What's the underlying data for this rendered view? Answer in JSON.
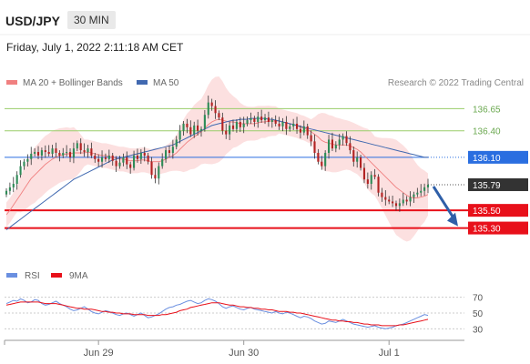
{
  "header": {
    "symbol": "USD/JPY",
    "timeframe": "30 MIN",
    "datetime": "Friday, July 1, 2022 2:11:18 AM CET",
    "copyright": "Research © 2022 Trading Central"
  },
  "colors": {
    "bull": "#2e8b57",
    "bear": "#b22222",
    "ma20": "#f08080",
    "bollinger_fill": "#fbd5d5",
    "ma50": "#4169b0",
    "resistance": "#9acd6a",
    "support": "#e8101a",
    "pivot": "#2a6ee0",
    "last": "#333333",
    "rsi": "#6a8fe0",
    "rsi_ma": "#e8101a"
  },
  "chart_data": [
    {
      "type": "candlestick",
      "title": "",
      "legend": [
        {
          "name": "MA 20 + Bollinger Bands",
          "color": "#f08080"
        },
        {
          "name": "MA 50",
          "color": "#4169b0"
        }
      ],
      "x_ticks": [
        "Jun 29",
        "Jun 30",
        "Jul 1"
      ],
      "ylim": [
        135.1,
        136.85
      ],
      "close": [
        135.72,
        135.76,
        135.8,
        135.9,
        136.0,
        136.05,
        136.08,
        136.14,
        136.16,
        136.12,
        136.18,
        136.16,
        136.14,
        136.2,
        136.15,
        136.12,
        136.15,
        136.16,
        136.1,
        136.2,
        136.26,
        136.18,
        136.16,
        136.2,
        136.12,
        136.08,
        136.05,
        136.1,
        136.08,
        136.12,
        136.06,
        136.0,
        136.04,
        136.1,
        136.02,
        135.98,
        136.12,
        136.08,
        136.15,
        136.12,
        136.05,
        135.9,
        135.86,
        136.0,
        136.08,
        136.18,
        136.15,
        136.22,
        136.3,
        136.4,
        136.48,
        136.44,
        136.36,
        136.46,
        136.4,
        136.42,
        136.58,
        136.72,
        136.68,
        136.6,
        136.55,
        136.4,
        136.36,
        136.46,
        136.42,
        136.5,
        136.44,
        136.48,
        136.52,
        136.54,
        136.5,
        136.56,
        136.52,
        136.55,
        136.5,
        136.52,
        136.48,
        136.45,
        136.5,
        136.42,
        136.45,
        136.48,
        136.42,
        136.38,
        136.45,
        136.35,
        136.28,
        136.15,
        136.05,
        136.0,
        136.15,
        136.3,
        136.2,
        136.24,
        136.3,
        136.34,
        136.26,
        136.18,
        136.05,
        136.1,
        135.98,
        135.85,
        135.8,
        135.9,
        135.88,
        135.7,
        135.65,
        135.62,
        135.6,
        135.58,
        135.55,
        135.58,
        135.62,
        135.6,
        135.65,
        135.68,
        135.7,
        135.72,
        135.76,
        135.79
      ],
      "series": [
        {
          "name": "MA 20 + Bollinger Bands",
          "values": [
            135.45,
            135.5,
            135.56,
            135.62,
            135.68,
            135.74,
            135.8,
            135.86,
            135.9,
            135.94,
            135.98,
            136.02,
            136.05,
            136.08,
            136.1,
            136.12,
            136.13,
            136.14,
            136.14,
            136.15,
            136.15,
            136.15,
            136.15,
            136.16,
            136.15,
            136.14,
            136.13,
            136.12,
            136.12,
            136.11,
            136.1,
            136.09,
            136.08,
            136.08,
            136.07,
            136.06,
            136.06,
            136.06,
            136.07,
            136.07,
            136.06,
            136.05,
            136.05,
            136.05,
            136.06,
            136.08,
            136.1,
            136.12,
            136.15,
            136.19,
            136.23,
            136.27,
            136.3,
            136.33,
            136.36,
            136.39,
            136.43,
            136.47,
            136.5,
            136.52,
            136.53,
            136.52,
            136.51,
            136.5,
            136.5,
            136.49,
            136.48,
            136.48,
            136.48,
            136.48,
            136.48,
            136.49,
            136.5,
            136.5,
            136.51,
            136.51,
            136.51,
            136.51,
            136.5,
            136.49,
            136.48,
            136.47,
            136.46,
            136.44,
            136.43,
            136.41,
            136.39,
            136.36,
            136.33,
            136.29,
            136.27,
            136.26,
            136.25,
            136.24,
            136.24,
            136.24,
            136.24,
            136.23,
            136.21,
            136.19,
            136.16,
            136.12,
            136.08,
            136.04,
            136.0,
            135.96,
            135.92,
            135.88,
            135.84,
            135.8,
            135.76,
            135.73,
            135.7,
            135.67,
            135.65,
            135.64,
            135.64,
            135.65,
            135.66,
            135.68
          ]
        },
        {
          "name": "MA 50",
          "values": [
            135.28,
            135.31,
            135.34,
            135.37,
            135.4,
            135.43,
            135.46,
            135.49,
            135.52,
            135.55,
            135.58,
            135.61,
            135.64,
            135.67,
            135.7,
            135.73,
            135.76,
            135.79,
            135.82,
            135.85,
            135.87,
            135.89,
            135.91,
            135.93,
            135.95,
            135.97,
            135.99,
            136.01,
            136.03,
            136.05,
            136.07,
            136.08,
            136.09,
            136.1,
            136.11,
            136.12,
            136.13,
            136.14,
            136.15,
            136.16,
            136.17,
            136.18,
            136.19,
            136.2,
            136.21,
            136.22,
            136.23,
            136.24,
            136.26,
            136.28,
            136.3,
            136.32,
            136.34,
            136.36,
            136.38,
            136.4,
            136.42,
            136.44,
            136.46,
            136.47,
            136.48,
            136.49,
            136.5,
            136.51,
            136.52,
            136.52,
            136.53,
            136.53,
            136.53,
            136.54,
            136.54,
            136.54,
            136.54,
            136.54,
            136.53,
            136.53,
            136.52,
            136.51,
            136.5,
            136.49,
            136.48,
            136.47,
            136.46,
            136.45,
            136.44,
            136.43,
            136.42,
            136.41,
            136.4,
            136.39,
            136.38,
            136.37,
            136.36,
            136.35,
            136.34,
            136.33,
            136.32,
            136.31,
            136.3,
            136.29,
            136.28,
            136.27,
            136.26,
            136.25,
            136.24,
            136.23,
            136.22,
            136.21,
            136.2,
            136.19,
            136.18,
            136.17,
            136.16,
            136.15,
            136.14,
            136.13,
            136.12,
            136.11,
            136.1,
            136.1
          ]
        }
      ],
      "levels": [
        {
          "value": 136.65,
          "label": "136.65",
          "kind": "resistance"
        },
        {
          "value": 136.4,
          "label": "136.40",
          "kind": "resistance"
        },
        {
          "value": 136.1,
          "label": "136.10",
          "kind": "pivot"
        },
        {
          "value": 135.79,
          "label": "135.79",
          "kind": "last"
        },
        {
          "value": 135.5,
          "label": "135.50",
          "kind": "support"
        },
        {
          "value": 135.3,
          "label": "135.30",
          "kind": "support"
        }
      ],
      "forecast_arrow": {
        "from": 135.79,
        "to": 135.3,
        "direction": "down"
      }
    },
    {
      "type": "line",
      "title": "",
      "legend": [
        {
          "name": "RSI",
          "color": "#6a8fe0"
        },
        {
          "name": "9MA",
          "color": "#e8101a"
        }
      ],
      "ylim": [
        20,
        80
      ],
      "y_ticks": [
        70,
        50,
        30
      ],
      "series": [
        {
          "name": "RSI",
          "values": [
            62,
            64,
            66,
            65,
            68,
            66,
            63,
            64,
            67,
            66,
            62,
            60,
            61,
            63,
            65,
            62,
            60,
            58,
            55,
            53,
            54,
            56,
            58,
            55,
            52,
            50,
            49,
            51,
            53,
            52,
            50,
            48,
            47,
            49,
            50,
            48,
            46,
            48,
            50,
            47,
            44,
            45,
            47,
            49,
            52,
            55,
            57,
            58,
            60,
            61,
            63,
            65,
            66,
            64,
            62,
            63,
            66,
            68,
            67,
            65,
            62,
            58,
            56,
            58,
            59,
            57,
            55,
            54,
            56,
            57,
            55,
            54,
            53,
            52,
            51,
            50,
            52,
            50,
            49,
            51,
            50,
            48,
            46,
            44,
            46,
            45,
            43,
            40,
            38,
            36,
            37,
            40,
            39,
            38,
            40,
            42,
            40,
            38,
            36,
            35,
            34,
            33,
            32,
            33,
            34,
            32,
            31,
            30,
            31,
            32,
            34,
            35,
            36,
            38,
            40,
            42,
            44,
            46,
            48,
            47
          ]
        },
        {
          "name": "9MA",
          "values": [
            60,
            61,
            62,
            63,
            64,
            64,
            64,
            64,
            64,
            64,
            63,
            62,
            62,
            62,
            62,
            61,
            60,
            59,
            58,
            57,
            56,
            56,
            55,
            55,
            55,
            54,
            53,
            52,
            52,
            51,
            51,
            50,
            50,
            49,
            49,
            49,
            48,
            48,
            48,
            48,
            47,
            47,
            47,
            47,
            48,
            48,
            49,
            50,
            51,
            53,
            54,
            55,
            57,
            58,
            59,
            60,
            61,
            62,
            63,
            63,
            63,
            62,
            61,
            60,
            60,
            59,
            58,
            58,
            57,
            57,
            56,
            56,
            55,
            55,
            54,
            54,
            53,
            52,
            52,
            52,
            51,
            51,
            50,
            50,
            49,
            48,
            47,
            46,
            45,
            44,
            43,
            42,
            41,
            41,
            40,
            40,
            39,
            39,
            38,
            38,
            37,
            36,
            36,
            35,
            35,
            35,
            34,
            34,
            34,
            34,
            34,
            35,
            35,
            36,
            37,
            38,
            39,
            40,
            41,
            42
          ]
        }
      ]
    }
  ]
}
